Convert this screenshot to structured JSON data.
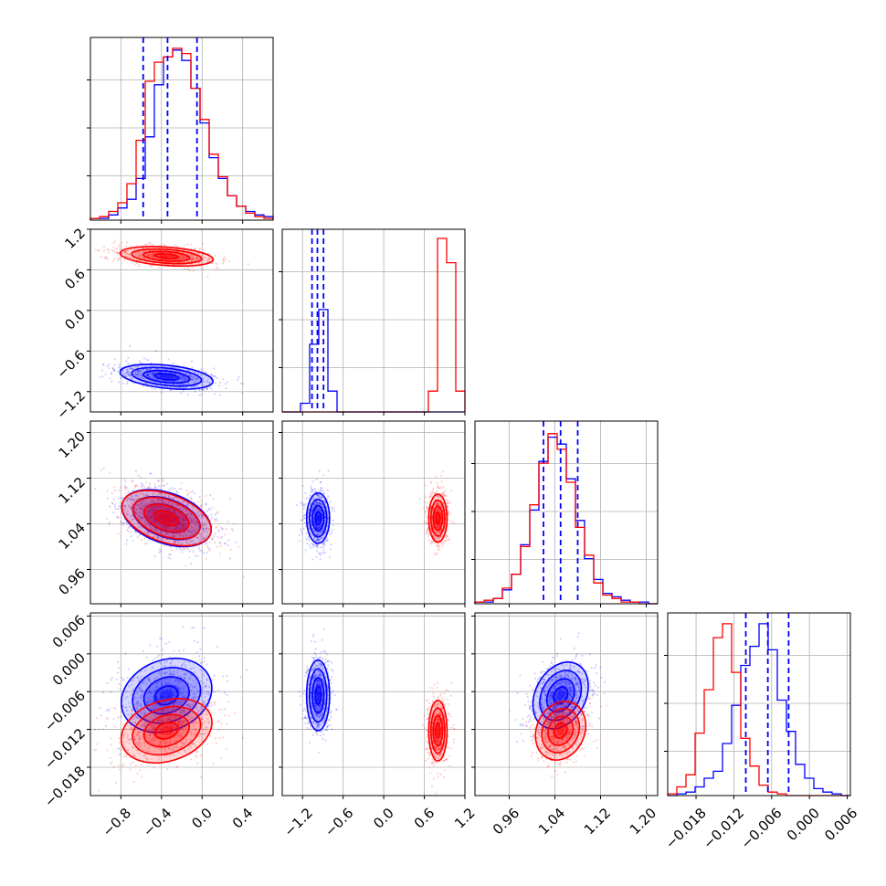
{
  "chart_data": {
    "type": "corner",
    "series": [
      {
        "name": "",
        "color": "#0000ff"
      },
      {
        "name": "",
        "color": "#ff0000"
      }
    ],
    "parameters": [
      {
        "index": 0,
        "range": [
          -1.1,
          0.7
        ],
        "ticks": [
          -0.8,
          -0.4,
          0.0,
          0.4
        ],
        "tick_labels": [
          "−0.8",
          "−0.4",
          "0.0",
          "0.4"
        ],
        "quantiles_blue": [
          -0.58,
          -0.34,
          -0.05
        ],
        "hist_blue": [
          0.01,
          0.01,
          0.03,
          0.07,
          0.12,
          0.24,
          0.48,
          0.78,
          0.94,
          0.98,
          0.92,
          0.76,
          0.56,
          0.36,
          0.24,
          0.14,
          0.08,
          0.05,
          0.03,
          0.02
        ],
        "hist_red": [
          0.01,
          0.02,
          0.05,
          0.1,
          0.21,
          0.46,
          0.8,
          0.91,
          0.94,
          0.99,
          0.96,
          0.76,
          0.58,
          0.38,
          0.25,
          0.14,
          0.08,
          0.04,
          0.02,
          0.01
        ]
      },
      {
        "index": 1,
        "range": [
          -1.5,
          1.2
        ],
        "ticks": [
          -1.2,
          -0.6,
          0.0,
          0.6,
          1.2
        ],
        "tick_labels": [
          "−1.2",
          "−0.6",
          "0.0",
          "0.6",
          "1.2"
        ],
        "quantiles_blue": [
          -1.06,
          -0.98,
          -0.89
        ],
        "hist_blue": [
          0,
          0,
          0.05,
          0.39,
          0.59,
          0.12,
          0,
          0,
          0,
          0,
          0,
          0,
          0,
          0,
          0,
          0,
          0,
          0,
          0,
          0
        ],
        "hist_red": [
          0,
          0,
          0,
          0,
          0,
          0,
          0,
          0,
          0,
          0,
          0,
          0,
          0,
          0,
          0,
          0,
          0.12,
          1.0,
          0.86,
          0.12
        ]
      },
      {
        "index": 2,
        "range": [
          0.9,
          1.22
        ],
        "ticks": [
          0.96,
          1.04,
          1.12,
          1.2
        ],
        "tick_labels": [
          "0.96",
          "1.04",
          "1.12",
          "1.20"
        ],
        "quantiles_blue": [
          1.02,
          1.05,
          1.08
        ],
        "hist_blue": [
          0.01,
          0.01,
          0.03,
          0.08,
          0.17,
          0.34,
          0.54,
          0.82,
          0.96,
          0.92,
          0.72,
          0.48,
          0.26,
          0.14,
          0.06,
          0.04,
          0.02,
          0.01,
          0.01,
          0.0
        ],
        "hist_red": [
          0.01,
          0.02,
          0.03,
          0.09,
          0.17,
          0.33,
          0.57,
          0.81,
          0.98,
          0.89,
          0.7,
          0.44,
          0.28,
          0.12,
          0.05,
          0.03,
          0.01,
          0.01,
          0.0,
          0.0
        ]
      },
      {
        "index": 3,
        "range": [
          -0.0225,
          0.0065
        ],
        "ticks": [
          -0.018,
          -0.012,
          -0.006,
          0.0,
          0.006
        ],
        "tick_labels": [
          "−0.018",
          "−0.012",
          "−0.006",
          "0.000",
          "0.006"
        ],
        "quantiles_blue": [
          -0.0101,
          -0.0066,
          -0.0033
        ],
        "hist_blue": [
          0.0,
          0.01,
          0.02,
          0.05,
          0.1,
          0.14,
          0.3,
          0.52,
          0.75,
          0.86,
          0.99,
          0.84,
          0.55,
          0.37,
          0.18,
          0.1,
          0.04,
          0.02,
          0.01,
          0.0
        ],
        "hist_red": [
          0.01,
          0.05,
          0.12,
          0.36,
          0.61,
          0.91,
          0.99,
          0.71,
          0.33,
          0.17,
          0.06,
          0.02,
          0.01,
          0.0,
          0.0,
          0.0,
          0.0,
          0.0,
          0.0,
          0.0
        ]
      }
    ],
    "pairs": [
      {
        "x": 0,
        "y": 1,
        "blue": {
          "center": [
            -0.35,
            -0.98
          ],
          "sd": [
            0.23,
            0.085
          ],
          "angle_deg": -6
        },
        "red": {
          "center": [
            -0.35,
            0.8
          ],
          "sd": [
            0.23,
            0.068
          ],
          "angle_deg": -4
        }
      },
      {
        "x": 0,
        "y": 2,
        "blue": {
          "center": [
            -0.35,
            1.05
          ],
          "sd": [
            0.23,
            0.022
          ],
          "angle_deg": -20
        },
        "red": {
          "center": [
            -0.35,
            1.05
          ],
          "sd": [
            0.23,
            0.021
          ],
          "angle_deg": -20
        }
      },
      {
        "x": 1,
        "y": 2,
        "blue": {
          "center": [
            -0.97,
            1.05
          ],
          "sd": [
            0.085,
            0.022
          ],
          "angle_deg": 0
        },
        "red": {
          "center": [
            0.8,
            1.05
          ],
          "sd": [
            0.068,
            0.021
          ],
          "angle_deg": 0
        }
      },
      {
        "x": 0,
        "y": 3,
        "blue": {
          "center": [
            -0.35,
            -0.0066
          ],
          "sd": [
            0.23,
            0.0028
          ],
          "angle_deg": 22
        },
        "red": {
          "center": [
            -0.35,
            -0.0122
          ],
          "sd": [
            0.23,
            0.0024
          ],
          "angle_deg": 18
        }
      },
      {
        "x": 1,
        "y": 3,
        "blue": {
          "center": [
            -0.97,
            -0.0066
          ],
          "sd": [
            0.085,
            0.0028
          ],
          "angle_deg": 0
        },
        "red": {
          "center": [
            0.8,
            -0.0122
          ],
          "sd": [
            0.068,
            0.0024
          ],
          "angle_deg": 0
        }
      },
      {
        "x": 2,
        "y": 3,
        "blue": {
          "center": [
            1.05,
            -0.0066
          ],
          "sd": [
            0.022,
            0.0028
          ],
          "angle_deg": -28
        },
        "red": {
          "center": [
            1.05,
            -0.0122
          ],
          "sd": [
            0.021,
            0.0024
          ],
          "angle_deg": -24
        }
      }
    ],
    "grid": true
  }
}
